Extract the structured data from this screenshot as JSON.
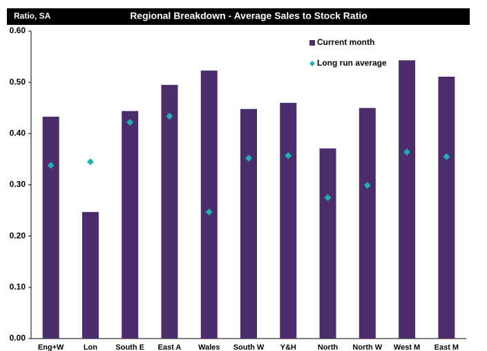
{
  "chart_data": {
    "type": "bar",
    "title": "Regional Breakdown - Average Sales to Stock Ratio",
    "y_label": "Ratio, SA",
    "categories": [
      "Eng+W",
      "Lon",
      "South E",
      "East A",
      "Wales",
      "South W",
      "Y&H",
      "North",
      "North W",
      "West M",
      "East M"
    ],
    "series": [
      {
        "name": "Current month",
        "type": "bar",
        "color": "#4b2d6b",
        "values": [
          0.433,
          0.247,
          0.444,
          0.495,
          0.523,
          0.448,
          0.46,
          0.371,
          0.45,
          0.543,
          0.511
        ]
      },
      {
        "name": "Long run average",
        "type": "scatter",
        "color": "#1fb0b0",
        "values": [
          0.338,
          0.345,
          0.422,
          0.434,
          0.247,
          0.352,
          0.357,
          0.275,
          0.299,
          0.364,
          0.355
        ]
      }
    ],
    "ylim": [
      0,
      0.6
    ],
    "yticks": [
      {
        "value": 0,
        "label": "0.00"
      },
      {
        "value": 0.1,
        "label": "0.10"
      },
      {
        "value": 0.2,
        "label": "0.20"
      },
      {
        "value": 0.3,
        "label": "0.30"
      },
      {
        "value": 0.4,
        "label": "0.40"
      },
      {
        "value": 0.5,
        "label": "0.50"
      },
      {
        "value": 0.6,
        "label": "0.60"
      }
    ],
    "legend": "top-right",
    "grid": false
  }
}
